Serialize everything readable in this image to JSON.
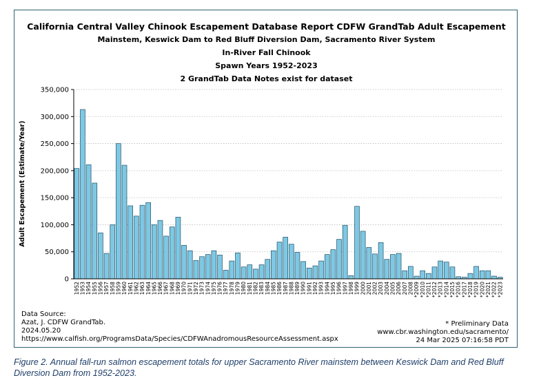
{
  "chart_data": {
    "type": "bar",
    "title": "California Central Valley Chinook Escapement Database Report CDFW GrandTab Adult Escapement",
    "subtitles": [
      "Mainstem, Keswick Dam to Red Bluff Diversion Dam, Sacramento River System",
      "In-River Fall Chinook",
      "Spawn Years 1952-2023",
      "2 GrandTab Data Notes exist for dataset"
    ],
    "xlabel": "",
    "ylabel": "Adult Escapement (Estimate/Year)",
    "ylim": [
      0,
      350000
    ],
    "yticks": [
      "0",
      "50,000",
      "100,000",
      "150,000",
      "200,000",
      "250,000",
      "300,000",
      "350,000"
    ],
    "grid": "horizontal dotted",
    "bar_color": "#7ec8e3",
    "bar_edge_color": "#1f4f66",
    "categories": [
      "1952",
      "1953",
      "1954",
      "1955",
      "1956",
      "1957",
      "1958",
      "1959",
      "1960",
      "1961",
      "1962",
      "1963",
      "1964",
      "1965",
      "1966",
      "1967",
      "1968",
      "1969",
      "1970",
      "1971",
      "1972",
      "1973",
      "1974",
      "1975",
      "1976",
      "1977",
      "1978",
      "1979",
      "1980",
      "1981",
      "1982",
      "1983",
      "1984",
      "1985",
      "1986",
      "1987",
      "1988",
      "1989",
      "1990",
      "1991",
      "1992",
      "1993",
      "1994",
      "1995",
      "1996",
      "1997",
      "1998",
      "1999",
      "2000",
      "2001",
      "2002",
      "2003",
      "2004",
      "2005",
      "2006",
      "2007",
      "2008",
      "*2009",
      "*2010",
      "*2011",
      "*2012",
      "*2013",
      "*2014",
      "*2015",
      "*2016",
      "*2017",
      "*2018",
      "*2019",
      "*2020",
      "*2021",
      "*2022",
      "*2023"
    ],
    "values": [
      204000,
      313000,
      211000,
      177000,
      85000,
      47000,
      100000,
      250000,
      210000,
      135000,
      116000,
      136000,
      141000,
      100000,
      108000,
      79000,
      96000,
      114000,
      62000,
      52000,
      34000,
      41000,
      45000,
      52000,
      44000,
      16000,
      33000,
      48000,
      22000,
      26000,
      18000,
      26000,
      36000,
      52000,
      68000,
      77000,
      64000,
      49000,
      32000,
      20000,
      24000,
      33000,
      45000,
      54000,
      73000,
      99000,
      6000,
      134000,
      88000,
      58000,
      46000,
      67000,
      36000,
      45000,
      47000,
      15000,
      23000,
      5000,
      15000,
      10000,
      22000,
      33000,
      31000,
      22000,
      4000,
      3000,
      10000,
      23000,
      15000,
      15000,
      5000,
      3000
    ]
  },
  "source_left": {
    "line1": "Data Source:",
    "line2": "Azat, J. CDFW GrandTab.",
    "line3": "2024.05.20",
    "line4": "https://www.calfish.org/ProgramsData/Species/CDFWAnadromousResourceAssessment.aspx"
  },
  "source_right": {
    "line1": "* Preliminary Data",
    "line2": "www.cbr.washington.edu/sacramento/",
    "line3": "24 Mar 2025 07:16:58 PDT"
  },
  "caption": "Figure 2.  Annual fall-run salmon escapement totals for upper Sacramento River mainstem between Keswick Dam and Red Bluff Diversion Dam from 1952-2023."
}
